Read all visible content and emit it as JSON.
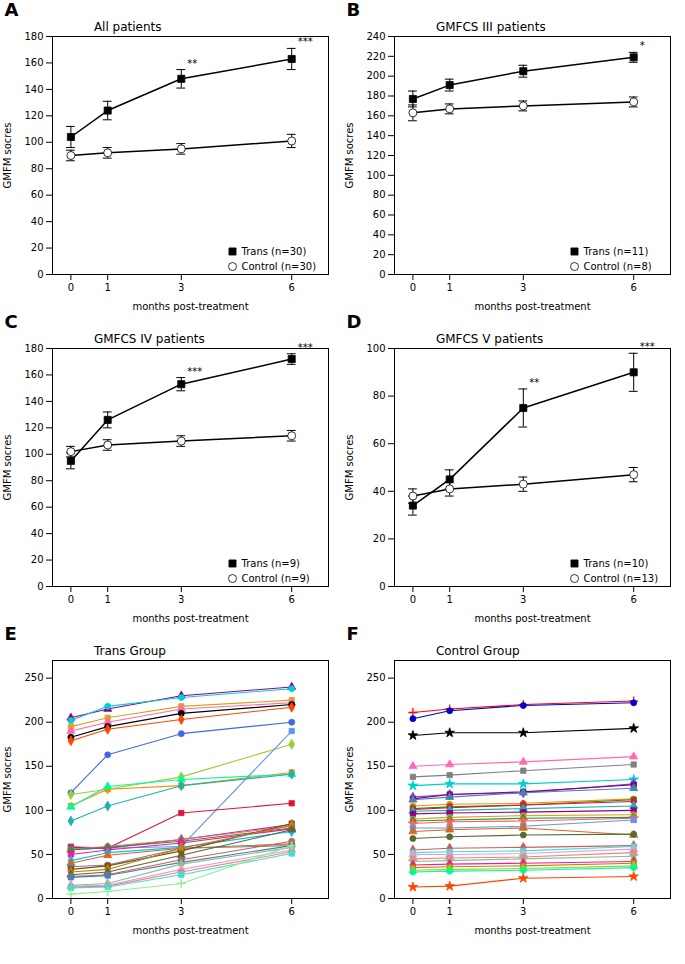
{
  "chart_data": [
    {
      "type": "line",
      "panel": "A",
      "title": "All patients",
      "xlabel": "months post-treatment",
      "ylabel": "GMFM socres",
      "x": [
        0,
        1,
        3,
        6
      ],
      "xlim": [
        -0.5,
        7.0
      ],
      "xticks": [
        0,
        1,
        3,
        6
      ],
      "ylim": [
        0,
        180
      ],
      "yticks": [
        0,
        20,
        40,
        60,
        80,
        100,
        120,
        140,
        160,
        180
      ],
      "grid": false,
      "legend": "lower right",
      "series": [
        {
          "name": "Trans (n=30)",
          "color": "#000000",
          "marker": "square",
          "values": [
            104,
            124,
            148,
            163
          ],
          "error": [
            8,
            7,
            7,
            8
          ]
        },
        {
          "name": "Control (n=30)",
          "color": "#000000",
          "marker": "circle_open",
          "values": [
            90,
            92,
            95,
            101
          ],
          "error": [
            4,
            4,
            4,
            5
          ]
        }
      ],
      "annotations": [
        {
          "x": 3,
          "text": "**"
        },
        {
          "x": 6,
          "text": "***"
        }
      ]
    },
    {
      "type": "line",
      "panel": "B",
      "title": "GMFCS III patients",
      "xlabel": "months post-treatment",
      "ylabel": "GMFM socres",
      "x": [
        0,
        1,
        3,
        6
      ],
      "xlim": [
        -0.5,
        7.0
      ],
      "xticks": [
        0,
        1,
        3,
        6
      ],
      "ylim": [
        0,
        240
      ],
      "yticks": [
        0,
        20,
        40,
        60,
        80,
        100,
        120,
        140,
        160,
        180,
        200,
        220,
        240
      ],
      "grid": false,
      "legend": "lower right",
      "series": [
        {
          "name": "Trans (n=11)",
          "color": "#000000",
          "marker": "square",
          "values": [
            177,
            191,
            205,
            219
          ],
          "error": [
            8,
            6,
            6,
            5
          ]
        },
        {
          "name": "Control (n=8)",
          "color": "#000000",
          "marker": "circle_open",
          "values": [
            163,
            167,
            170,
            174
          ],
          "error": [
            8,
            5,
            5,
            5
          ]
        }
      ],
      "annotations": [
        {
          "x": 6,
          "text": "*"
        }
      ]
    },
    {
      "type": "line",
      "panel": "C",
      "title": "GMFCS IV patients",
      "xlabel": "months post-treatment",
      "ylabel": "GMFM socres",
      "x": [
        0,
        1,
        3,
        6
      ],
      "xlim": [
        -0.5,
        7.0
      ],
      "xticks": [
        0,
        1,
        3,
        6
      ],
      "ylim": [
        0,
        180
      ],
      "yticks": [
        0,
        20,
        40,
        60,
        80,
        100,
        120,
        140,
        160,
        180
      ],
      "grid": false,
      "legend": "lower right",
      "series": [
        {
          "name": "Trans (n=9)",
          "color": "#000000",
          "marker": "square",
          "values": [
            95,
            126,
            153,
            172
          ],
          "error": [
            6,
            6,
            5,
            4
          ]
        },
        {
          "name": "Control (n=9)",
          "color": "#000000",
          "marker": "circle_open",
          "values": [
            102,
            107,
            110,
            114
          ],
          "error": [
            4,
            4,
            4,
            4
          ]
        }
      ],
      "annotations": [
        {
          "x": 3,
          "text": "***"
        },
        {
          "x": 6,
          "text": "***"
        }
      ]
    },
    {
      "type": "line",
      "panel": "D",
      "title": "GMFCS V patients",
      "xlabel": "months post-treatment",
      "ylabel": "GMFM socres",
      "x": [
        0,
        1,
        3,
        6
      ],
      "xlim": [
        -0.5,
        7.0
      ],
      "xticks": [
        0,
        1,
        3,
        6
      ],
      "ylim": [
        0,
        100
      ],
      "yticks": [
        0,
        20,
        40,
        60,
        80,
        100
      ],
      "grid": false,
      "legend": "lower right",
      "series": [
        {
          "name": "Trans (n=10)",
          "color": "#000000",
          "marker": "square",
          "values": [
            34,
            45,
            75,
            90
          ],
          "error": [
            4,
            4,
            8,
            8
          ]
        },
        {
          "name": "Control (n=13)",
          "color": "#000000",
          "marker": "circle_open",
          "values": [
            38,
            41,
            43,
            47
          ],
          "error": [
            3,
            3,
            3,
            3
          ]
        }
      ],
      "annotations": [
        {
          "x": 3,
          "text": "**"
        },
        {
          "x": 6,
          "text": "***"
        }
      ]
    },
    {
      "type": "line",
      "panel": "E",
      "title": "Trans Group",
      "xlabel": "months post-treatment",
      "ylabel": "GMFM socres",
      "x": [
        0,
        1,
        3,
        6
      ],
      "xlim": [
        -0.5,
        7.0
      ],
      "xticks": [
        0,
        1,
        3,
        6
      ],
      "ylim": [
        0,
        270
      ],
      "yticks": [
        0,
        50,
        100,
        150,
        200,
        250
      ],
      "grid": false,
      "series": [
        {
          "values": [
            205,
            215,
            230,
            240
          ],
          "color": "#8B008B",
          "marker": "triangle"
        },
        {
          "values": [
            202,
            218,
            228,
            238
          ],
          "color": "#00CED1",
          "marker": "circle"
        },
        {
          "values": [
            195,
            205,
            218,
            225
          ],
          "color": "#DAA520",
          "marker": "square"
        },
        {
          "values": [
            190,
            200,
            215,
            222
          ],
          "color": "#FF69B4",
          "marker": "triangle"
        },
        {
          "values": [
            183,
            195,
            210,
            220
          ],
          "color": "#000000",
          "marker": "circle"
        },
        {
          "values": [
            179,
            192,
            203,
            217
          ],
          "color": "#FF4500",
          "marker": "diamond"
        },
        {
          "values": [
            120,
            163,
            187,
            200
          ],
          "color": "#4169E1",
          "marker": "circle"
        },
        {
          "values": [
            118,
            124,
            138,
            175
          ],
          "color": "#9ACD32",
          "marker": "diamond"
        },
        {
          "values": [
            105,
            124,
            128,
            143
          ],
          "color": "#FF8C00",
          "marker": "square"
        },
        {
          "values": [
            104,
            127,
            135,
            141
          ],
          "color": "#00FA9A",
          "marker": "triangle"
        },
        {
          "values": [
            88,
            105,
            128,
            141
          ],
          "color": "#20B2AA",
          "marker": "diamond"
        },
        {
          "values": [
            59,
            57,
            59,
            190
          ],
          "color": "#6495ED",
          "marker": "square"
        },
        {
          "values": [
            58,
            57,
            97,
            108
          ],
          "color": "#DC143C",
          "marker": "square"
        },
        {
          "values": [
            56,
            57,
            67,
            84
          ],
          "color": "#9932CC",
          "marker": "diamond"
        },
        {
          "values": [
            56,
            59,
            67,
            82
          ],
          "color": "#FF6347",
          "marker": "circle"
        },
        {
          "values": [
            55,
            58,
            65,
            80
          ],
          "color": "#2E8B57",
          "marker": "triangle"
        },
        {
          "values": [
            50,
            55,
            63,
            79
          ],
          "color": "#FF1493",
          "marker": "square"
        },
        {
          "values": [
            43,
            52,
            58,
            76
          ],
          "color": "#00BFFF",
          "marker": "diamond"
        },
        {
          "values": [
            40,
            49,
            57,
            62
          ],
          "color": "#D2691E",
          "marker": "triangle"
        },
        {
          "values": [
            36,
            38,
            57,
            60
          ],
          "color": "#708090",
          "marker": "circle"
        },
        {
          "values": [
            33,
            37,
            54,
            85
          ],
          "color": "#8B4513",
          "marker": "square"
        },
        {
          "values": [
            30,
            33,
            57,
            83
          ],
          "color": "#B8860B",
          "marker": "diamond"
        },
        {
          "values": [
            27,
            30,
            49,
            78
          ],
          "color": "#556B2F",
          "marker": "triangle"
        },
        {
          "values": [
            25,
            27,
            44,
            65
          ],
          "color": "#CD5C5C",
          "marker": "circle"
        },
        {
          "values": [
            24,
            26,
            41,
            60
          ],
          "color": "#4682B4",
          "marker": "square"
        },
        {
          "values": [
            15,
            17,
            39,
            58
          ],
          "color": "#8FBC8F",
          "marker": "diamond"
        },
        {
          "values": [
            14,
            15,
            33,
            55
          ],
          "color": "#DDA0DD",
          "marker": "triangle"
        },
        {
          "values": [
            13,
            14,
            30,
            53
          ],
          "color": "#F08080",
          "marker": "circle"
        },
        {
          "values": [
            12,
            13,
            27,
            51
          ],
          "color": "#40E0D0",
          "marker": "square"
        },
        {
          "values": [
            5,
            8,
            17,
            60
          ],
          "color": "#90EE90",
          "marker": "plus"
        }
      ]
    },
    {
      "type": "line",
      "panel": "F",
      "title": "Control Group",
      "xlabel": "months post-treatment",
      "ylabel": "GMFM socres",
      "x": [
        0,
        1,
        3,
        6
      ],
      "xlim": [
        -0.5,
        7.0
      ],
      "xticks": [
        0,
        1,
        3,
        6
      ],
      "ylim": [
        0,
        270
      ],
      "yticks": [
        0,
        50,
        100,
        150,
        200,
        250
      ],
      "grid": false,
      "series": [
        {
          "values": [
            211,
            215,
            220,
            224
          ],
          "color": "#FF0000",
          "marker": "plus"
        },
        {
          "values": [
            204,
            213,
            219,
            222
          ],
          "color": "#0000CD",
          "marker": "circle"
        },
        {
          "values": [
            185,
            188,
            188,
            193
          ],
          "color": "#000000",
          "marker": "star"
        },
        {
          "values": [
            150,
            152,
            155,
            161
          ],
          "color": "#FF69B4",
          "marker": "triangle"
        },
        {
          "values": [
            138,
            140,
            145,
            152
          ],
          "color": "#808080",
          "marker": "square"
        },
        {
          "values": [
            128,
            130,
            130,
            135
          ],
          "color": "#00CED1",
          "marker": "star"
        },
        {
          "values": [
            115,
            118,
            120,
            130
          ],
          "color": "#9932CC",
          "marker": "diamond"
        },
        {
          "values": [
            113,
            118,
            121,
            129
          ],
          "color": "#800080",
          "marker": "square"
        },
        {
          "values": [
            112,
            115,
            120,
            125
          ],
          "color": "#4682B4",
          "marker": "triangle"
        },
        {
          "values": [
            105,
            107,
            108,
            113
          ],
          "color": "#FF8C00",
          "marker": "circle"
        },
        {
          "values": [
            102,
            104,
            106,
            112
          ],
          "color": "#228B22",
          "marker": "square"
        },
        {
          "values": [
            101,
            103,
            106,
            110
          ],
          "color": "#DC143C",
          "marker": "diamond"
        },
        {
          "values": [
            99,
            100,
            102,
            105
          ],
          "color": "#20B2AA",
          "marker": "triangle"
        },
        {
          "values": [
            96,
            97,
            98,
            100
          ],
          "color": "#8B008B",
          "marker": "square"
        },
        {
          "values": [
            90,
            92,
            94,
            95
          ],
          "color": "#DAA520",
          "marker": "circle"
        },
        {
          "values": [
            88,
            89,
            91,
            92
          ],
          "color": "#2E8B57",
          "marker": "diamond"
        },
        {
          "values": [
            85,
            87,
            88,
            91
          ],
          "color": "#FF6347",
          "marker": "star"
        },
        {
          "values": [
            80,
            80,
            82,
            89
          ],
          "color": "#6495ED",
          "marker": "square"
        },
        {
          "values": [
            76,
            78,
            80,
            72
          ],
          "color": "#D2691E",
          "marker": "triangle"
        },
        {
          "values": [
            68,
            70,
            72,
            73
          ],
          "color": "#556B2F",
          "marker": "circle"
        },
        {
          "values": [
            55,
            57,
            58,
            60
          ],
          "color": "#CD5C5C",
          "marker": "diamond"
        },
        {
          "values": [
            52,
            53,
            54,
            59
          ],
          "color": "#40E0D0",
          "marker": "square"
        },
        {
          "values": [
            50,
            50,
            51,
            56
          ],
          "color": "#DDA0DD",
          "marker": "triangle"
        },
        {
          "values": [
            45,
            46,
            47,
            52
          ],
          "color": "#F08080",
          "marker": "circle"
        },
        {
          "values": [
            42,
            43,
            45,
            48
          ],
          "color": "#8FBC8F",
          "marker": "star"
        },
        {
          "values": [
            38,
            39,
            40,
            42
          ],
          "color": "#FF1493",
          "marker": "diamond"
        },
        {
          "values": [
            35,
            36,
            37,
            40
          ],
          "color": "#B8860B",
          "marker": "square"
        },
        {
          "values": [
            32,
            33,
            34,
            37
          ],
          "color": "#9ACD32",
          "marker": "triangle"
        },
        {
          "values": [
            30,
            31,
            32,
            35
          ],
          "color": "#00FA9A",
          "marker": "circle"
        },
        {
          "values": [
            13,
            14,
            23,
            25
          ],
          "color": "#FF4500",
          "marker": "star"
        }
      ]
    }
  ]
}
